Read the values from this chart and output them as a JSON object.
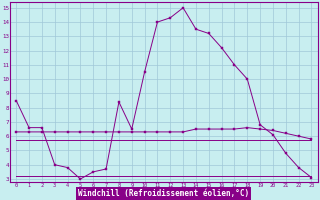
{
  "xlabel": "Windchill (Refroidissement éolien,°C)",
  "bg_color": "#c8eef0",
  "grid_color": "#a0c8d8",
  "line_color": "#880088",
  "spine_color": "#880088",
  "tick_color": "#880088",
  "label_bg": "#880088",
  "xlim": [
    -0.5,
    23.5
  ],
  "ylim": [
    2.8,
    15.4
  ],
  "yticks": [
    3,
    4,
    5,
    6,
    7,
    8,
    9,
    10,
    11,
    12,
    13,
    14,
    15
  ],
  "xticks": [
    0,
    1,
    2,
    3,
    4,
    5,
    6,
    7,
    8,
    9,
    10,
    11,
    12,
    13,
    14,
    15,
    16,
    17,
    18,
    19,
    20,
    21,
    22,
    23
  ],
  "line1_x": [
    0,
    1,
    2,
    3,
    4,
    5,
    6,
    7,
    8,
    9,
    10,
    11,
    12,
    13,
    14,
    15,
    16,
    17,
    18,
    19,
    20,
    21,
    22,
    23
  ],
  "line1_y": [
    8.5,
    6.6,
    6.6,
    4.0,
    3.8,
    3.0,
    3.5,
    3.7,
    8.4,
    6.5,
    10.5,
    14.0,
    14.3,
    15.0,
    13.5,
    13.2,
    12.2,
    11.0,
    10.0,
    6.8,
    6.1,
    4.8,
    3.8,
    3.1
  ],
  "line2_x": [
    0,
    1,
    2,
    3,
    4,
    5,
    6,
    7,
    8,
    9,
    10,
    11,
    12,
    13,
    14,
    15,
    16,
    17,
    18,
    19,
    20,
    21,
    22,
    23
  ],
  "line2_y": [
    6.3,
    6.3,
    6.3,
    6.3,
    6.3,
    6.3,
    6.3,
    6.3,
    6.3,
    6.3,
    6.3,
    6.3,
    6.3,
    6.3,
    6.5,
    6.5,
    6.5,
    6.5,
    6.6,
    6.5,
    6.4,
    6.2,
    6.0,
    5.8
  ],
  "line3_x": [
    0,
    1,
    2,
    3,
    4,
    5,
    6,
    7,
    8,
    9,
    10,
    11,
    12,
    13,
    14,
    15,
    16,
    17,
    18,
    19,
    20,
    21,
    22,
    23
  ],
  "line3_y": [
    5.7,
    5.7,
    5.7,
    5.7,
    5.7,
    5.7,
    5.7,
    5.7,
    5.7,
    5.7,
    5.7,
    5.7,
    5.7,
    5.7,
    5.7,
    5.7,
    5.7,
    5.7,
    5.7,
    5.7,
    5.7,
    5.7,
    5.7,
    5.7
  ],
  "line4_x": [
    0,
    1,
    2,
    3,
    4,
    5,
    6,
    7,
    8,
    9,
    10,
    11,
    12,
    13,
    14,
    15,
    16,
    17,
    18,
    19,
    20,
    21,
    22,
    23
  ],
  "line4_y": [
    3.2,
    3.2,
    3.2,
    3.2,
    3.2,
    3.2,
    3.2,
    3.2,
    3.2,
    3.2,
    3.2,
    3.2,
    3.2,
    3.2,
    3.2,
    3.2,
    3.2,
    3.2,
    3.2,
    3.2,
    3.2,
    3.2,
    3.2,
    3.2
  ]
}
